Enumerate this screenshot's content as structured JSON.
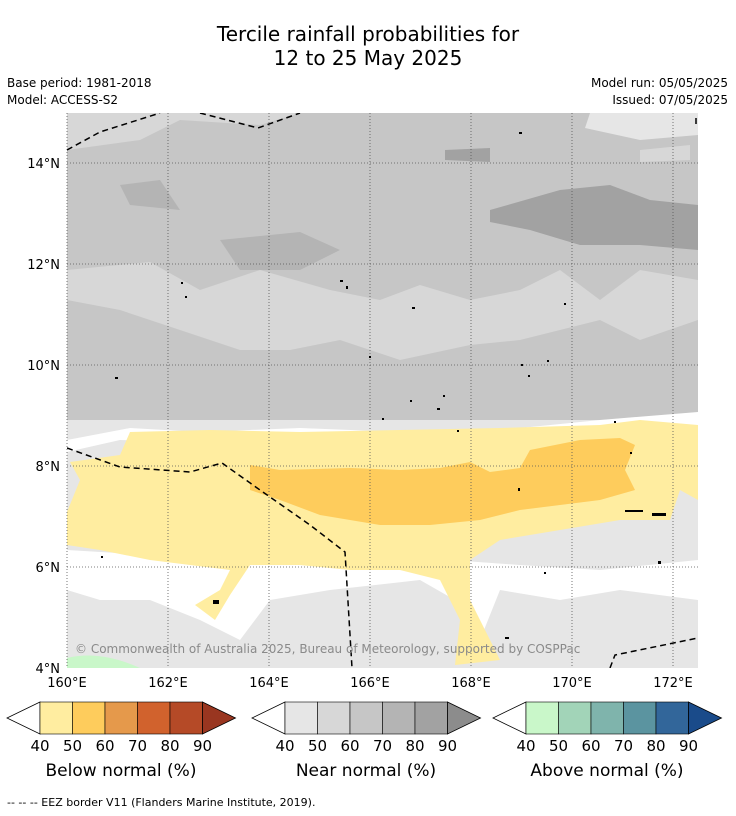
{
  "title_line1": "Tercile rainfall probabilities for",
  "title_line2": "12 to 25 May 2025",
  "meta": {
    "base_period": "Base period: 1981-2018",
    "model": "Model: ACCESS-S2",
    "model_run": "Model run: 05/05/2025",
    "issued": "Issued: 07/05/2025"
  },
  "map": {
    "lon_ticks": [
      "160°E",
      "162°E",
      "164°E",
      "166°E",
      "168°E",
      "170°E",
      "172°E"
    ],
    "lat_ticks": [
      "14°N",
      "12°N",
      "10°N",
      "8°N",
      "6°N",
      "4°N"
    ],
    "copyright": "© Commonwealth of Australia 2025, Bureau of Meteorology, supported by COSPPac"
  },
  "colorbars": [
    {
      "name": "below",
      "title": "Below normal (%)",
      "colors": [
        "#ffeda0",
        "#fecc5c",
        "#e5994b",
        "#d1622d",
        "#b54a27",
        "#993620"
      ],
      "labels": [
        "40",
        "50",
        "60",
        "70",
        "80",
        "90"
      ]
    },
    {
      "name": "near",
      "title": "Near normal (%)",
      "colors": [
        "#e6e6e6",
        "#d7d7d7",
        "#c6c6c6",
        "#b4b4b4",
        "#a2a2a2",
        "#8c8c8c"
      ],
      "labels": [
        "40",
        "50",
        "60",
        "70",
        "80",
        "90"
      ]
    },
    {
      "name": "above",
      "title": "Above normal (%)",
      "colors": [
        "#c9f7c9",
        "#a2d4b8",
        "#7fb4ac",
        "#5b94a0",
        "#32669a",
        "#1a4b8a"
      ],
      "labels": [
        "40",
        "50",
        "60",
        "70",
        "80",
        "90"
      ]
    }
  ],
  "footer": "--  --  -- EEZ border V11 (Flanders Marine Institute, 2019)."
}
